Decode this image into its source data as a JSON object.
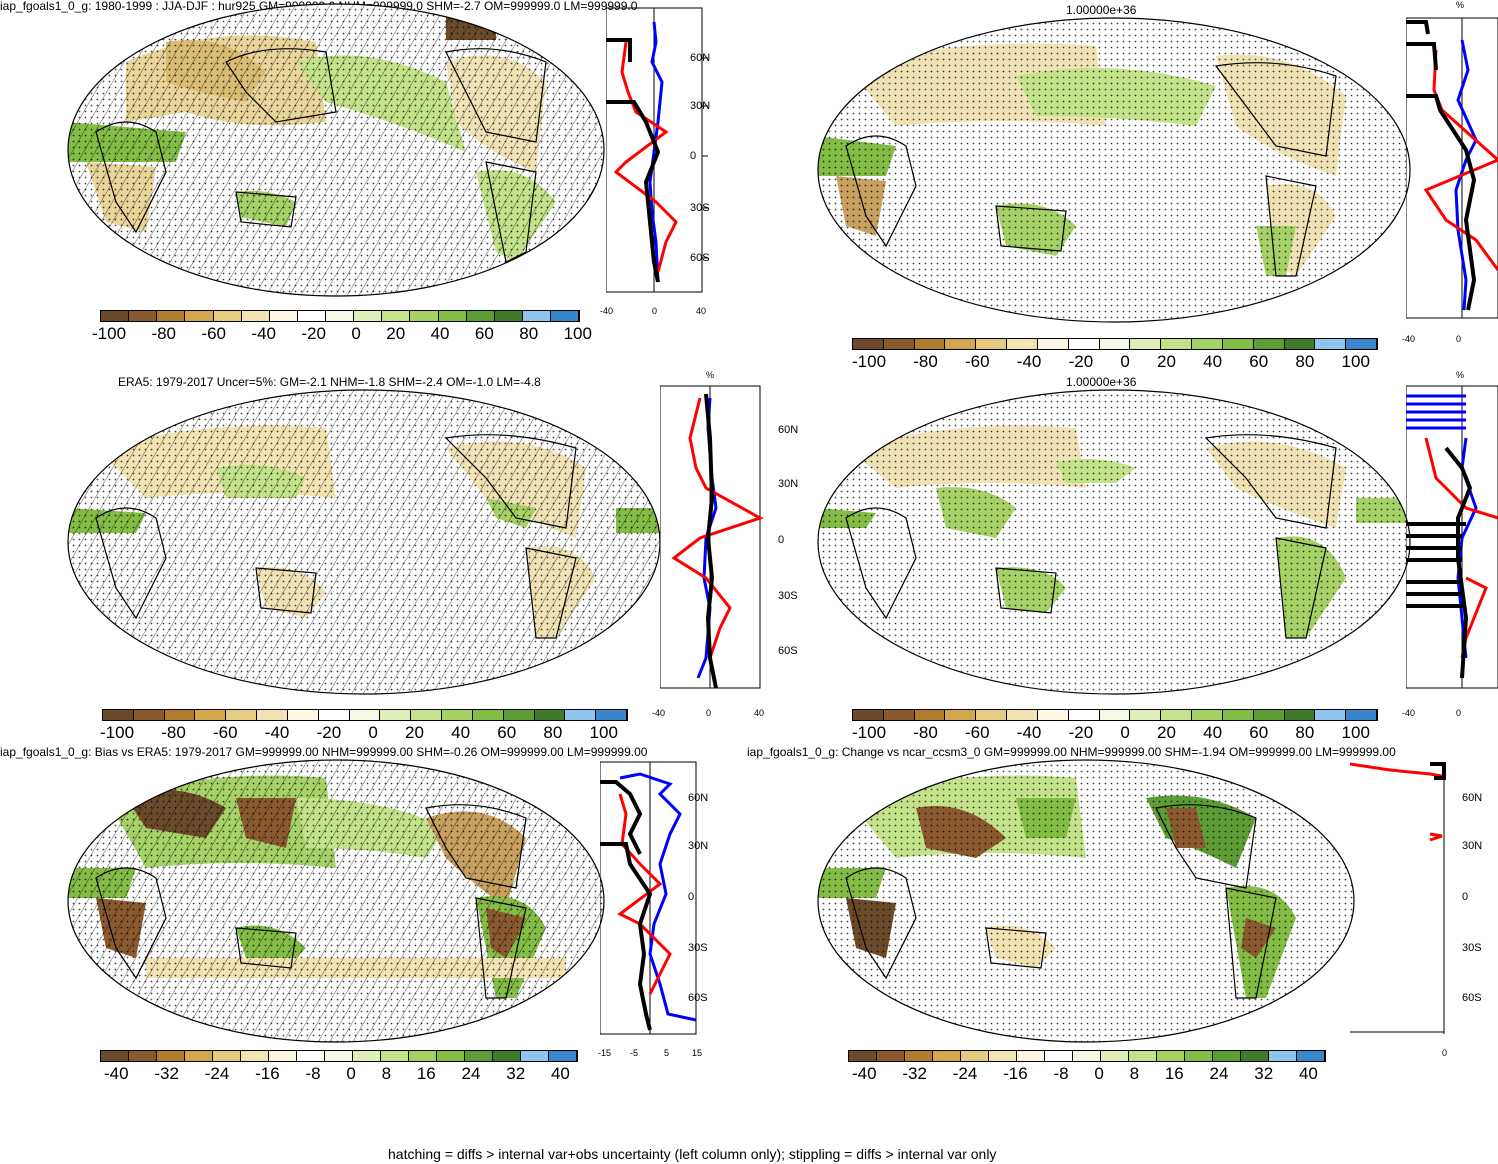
{
  "panels": [
    {
      "title": "iap_fgoals1_0_g: 1980-1999 : JJA-DJF : hur925 GM=999999.0 NHM=999999.0 SHM=-2.7 OM=999999.0 LM=999999.0",
      "colorbar_labels": [
        "-100",
        "-80",
        "-60",
        "-40",
        "-20",
        "0",
        "20",
        "40",
        "60",
        "80",
        "100"
      ],
      "profile_lat_labels": [
        "60N",
        "30N",
        "0",
        "30S",
        "60S"
      ],
      "profile_x_labels": [
        "-40",
        "0",
        "40"
      ],
      "profile_unit": ""
    },
    {
      "title": "1.00000e+36",
      "colorbar_labels": [
        "-100",
        "-80",
        "-60",
        "-40",
        "-20",
        "0",
        "20",
        "40",
        "60",
        "80",
        "100"
      ],
      "profile_lat_labels": [],
      "profile_x_labels": [
        "-40",
        "0"
      ],
      "profile_unit": "%"
    },
    {
      "title": "ERA5: 1979-2017 Uncer=5%: GM=-2.1 NHM=-1.8 SHM=-2.4 OM=-1.0 LM=-4.8",
      "colorbar_labels": [
        "-100",
        "-80",
        "-60",
        "-40",
        "-20",
        "0",
        "20",
        "40",
        "60",
        "80",
        "100"
      ],
      "profile_lat_labels": [
        "60N",
        "30N",
        "0",
        "30S",
        "60S"
      ],
      "profile_x_labels": [
        "-40",
        "0",
        "40"
      ],
      "profile_unit": "%"
    },
    {
      "title": "1.00000e+36",
      "colorbar_labels": [
        "-100",
        "-80",
        "-60",
        "-40",
        "-20",
        "0",
        "20",
        "40",
        "60",
        "80",
        "100"
      ],
      "profile_lat_labels": [],
      "profile_x_labels": [
        "-40",
        "0"
      ],
      "profile_unit": "%"
    },
    {
      "title": "iap_fgoals1_0_g: Bias vs ERA5: 1979-2017 GM=999999.00 NHM=999999.00 SHM=-0.26 OM=999999.00 LM=999999.00",
      "colorbar_labels": [
        "-40",
        "-32",
        "-24",
        "-16",
        "-8",
        "0",
        "8",
        "16",
        "24",
        "32",
        "40"
      ],
      "profile_lat_labels": [
        "60N",
        "30N",
        "0",
        "30S",
        "60S"
      ],
      "profile_x_labels": [
        "-15",
        "-5",
        "5",
        "15"
      ],
      "profile_unit": ""
    },
    {
      "title": "iap_fgoals1_0_g: Change vs ncar_ccsm3_0 GM=999999.00 NHM=999999.00 SHM=-1.94 OM=999999.00 LM=999999.00",
      "colorbar_labels": [
        "-40",
        "-32",
        "-24",
        "-16",
        "-8",
        "0",
        "8",
        "16",
        "24",
        "32",
        "40"
      ],
      "profile_lat_labels": [
        "60N",
        "30N",
        "0",
        "30S",
        "60S"
      ],
      "profile_x_labels": [
        "0"
      ],
      "profile_unit": ""
    }
  ],
  "footer": "hatching = diffs > internal var+obs uncertainty (left column only); stippling = diffs > internal var only",
  "colors": {
    "scale": [
      "#6b4a2a",
      "#8a5a2e",
      "#b07d2f",
      "#d3a74e",
      "#e6cc80",
      "#f2e4b2",
      "#fdf8e4",
      "#ffffff",
      "#f4f9e6",
      "#e0efb9",
      "#c4e28a",
      "#a6d167",
      "#84bd45",
      "#5d9d35",
      "#3e7a2a",
      "#8ec6ee",
      "#3a86cc"
    ],
    "ocean": "#ffffff",
    "neg_fill": "#efe2b4",
    "pos_fill": "#bfe08a",
    "profile_red": "#ff0000",
    "profile_blue": "#0000ff",
    "profile_black": "#000000"
  }
}
